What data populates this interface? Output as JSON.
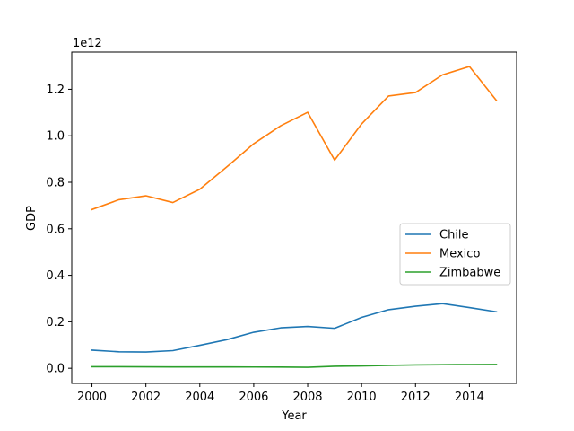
{
  "chart_data": {
    "type": "line",
    "title": "",
    "xlabel": "Year",
    "ylabel": "GDP",
    "offset_label": "1e12",
    "x": [
      2000,
      2001,
      2002,
      2003,
      2004,
      2005,
      2006,
      2007,
      2008,
      2009,
      2010,
      2011,
      2012,
      2013,
      2014,
      2015
    ],
    "xlim": [
      1999.25,
      2015.75
    ],
    "ylim": [
      -0.065,
      1.36
    ],
    "x_ticks": [
      "2000",
      "2002",
      "2004",
      "2006",
      "2008",
      "2010",
      "2012",
      "2014"
    ],
    "y_ticks": [
      "0.0",
      "0.2",
      "0.4",
      "0.6",
      "0.8",
      "1.0",
      "1.2"
    ],
    "y_unit_scale": "1e12",
    "legend_position": "center-right",
    "grid": false,
    "series": [
      {
        "name": "Chile",
        "color": "#1f77b4",
        "values": [
          0.078,
          0.071,
          0.07,
          0.076,
          0.099,
          0.123,
          0.155,
          0.174,
          0.18,
          0.172,
          0.219,
          0.252,
          0.267,
          0.278,
          0.261,
          0.243
        ]
      },
      {
        "name": "Mexico",
        "color": "#ff7f0e",
        "values": [
          0.683,
          0.725,
          0.742,
          0.713,
          0.77,
          0.866,
          0.966,
          1.043,
          1.101,
          0.895,
          1.051,
          1.171,
          1.186,
          1.262,
          1.298,
          1.152
        ]
      },
      {
        "name": "Zimbabwe",
        "color": "#2ca02c",
        "values": [
          0.0067,
          0.0068,
          0.0063,
          0.0058,
          0.0058,
          0.0057,
          0.0055,
          0.0053,
          0.0044,
          0.0087,
          0.0102,
          0.0125,
          0.0145,
          0.0155,
          0.016,
          0.0164
        ]
      }
    ]
  }
}
